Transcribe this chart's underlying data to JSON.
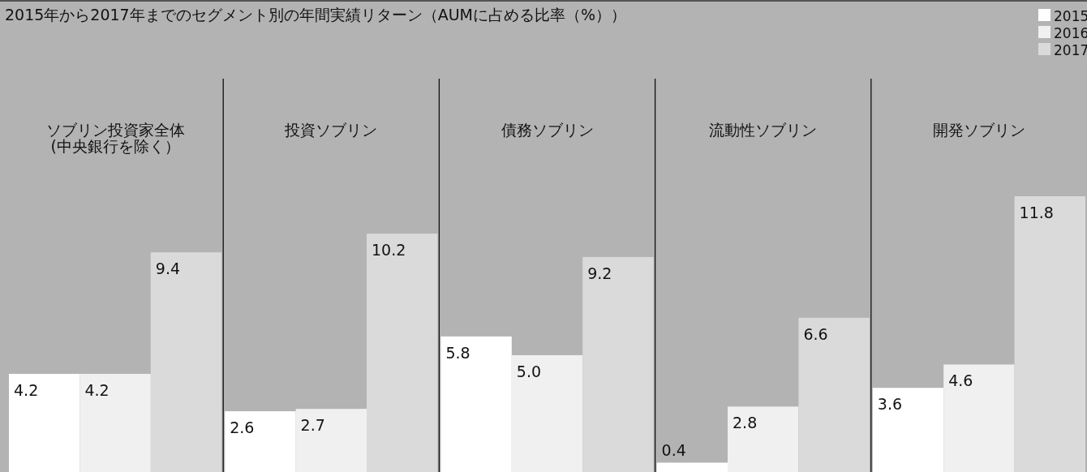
{
  "chart_data": {
    "type": "bar",
    "title": "2015年から2017年までのセグメント別の年間実績リターン（AUMに占める比率（%））",
    "categories": [
      "ソブリン投資家全体\n(中央銀行を除く）",
      "投資ソブリン",
      "債務ソブリン",
      "流動性ソブリン",
      "開発ソブリン"
    ],
    "series": [
      {
        "name": "2015",
        "color": "#ffffff",
        "values": [
          4.2,
          2.6,
          5.8,
          0.4,
          3.6
        ],
        "value_labels": [
          "4.2",
          "2.6",
          "5.8",
          "0.4",
          "3.6"
        ]
      },
      {
        "name": "2016",
        "color": "#f0f0f0",
        "values": [
          4.2,
          2.7,
          5.0,
          2.8,
          4.6
        ],
        "value_labels": [
          "4.2",
          "2.7",
          "5.0",
          "2.8",
          "4.6"
        ]
      },
      {
        "name": "2017",
        "color": "#dadada",
        "values": [
          9.4,
          10.2,
          9.2,
          6.6,
          11.8
        ],
        "value_labels": [
          "9.4",
          "10.2",
          "9.2",
          "6.6",
          "11.8"
        ]
      }
    ],
    "legend": "top right"
  }
}
